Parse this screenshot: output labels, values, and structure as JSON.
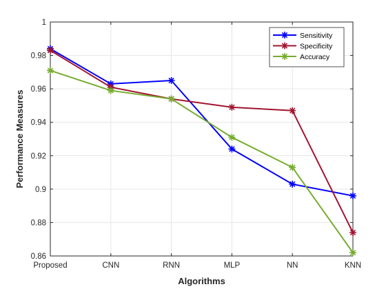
{
  "chart_data": {
    "type": "line",
    "title": "",
    "xlabel": "Algorithms",
    "ylabel": "Performance Measures",
    "categories": [
      "Proposed",
      "CNN",
      "RNN",
      "MLP",
      "NN",
      "KNN"
    ],
    "ylim": [
      0.86,
      1.0
    ],
    "yticks": [
      "0.86",
      "0.88",
      "0.9",
      "0.92",
      "0.94",
      "0.96",
      "0.98",
      "1"
    ],
    "grid": true,
    "legend_position": "top-right",
    "series": [
      {
        "name": "Sensitivity",
        "color": "#0000FF",
        "values": [
          0.984,
          0.963,
          0.965,
          0.924,
          0.903,
          0.896
        ]
      },
      {
        "name": "Specificity",
        "color": "#A2142F",
        "values": [
          0.983,
          0.961,
          0.954,
          0.949,
          0.947,
          0.874
        ]
      },
      {
        "name": "Accuracy",
        "color": "#77AC30",
        "values": [
          0.971,
          0.959,
          0.954,
          0.931,
          0.913,
          0.862
        ]
      }
    ],
    "marker": "asterisk"
  }
}
